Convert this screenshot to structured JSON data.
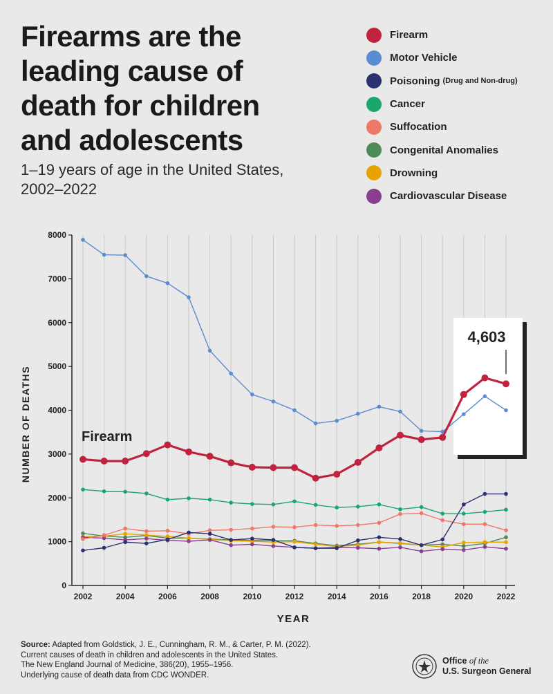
{
  "title_lines": [
    "Firearms are the",
    "leading cause of",
    "death for children",
    "and adolescents"
  ],
  "subtitle_lines": [
    "1–19 years of age in the United States,",
    "2002–2022"
  ],
  "legend": [
    {
      "label": "Firearm",
      "note": "",
      "color": "#c0233f"
    },
    {
      "label": "Motor Vehicle",
      "note": "",
      "color": "#5b8bd0"
    },
    {
      "label": "Poisoning",
      "note": "(Drug and Non-drug)",
      "color": "#2b3070"
    },
    {
      "label": "Cancer",
      "note": "",
      "color": "#1aa76c"
    },
    {
      "label": "Suffocation",
      "note": "",
      "color": "#ee7868"
    },
    {
      "label": "Congenital Anomalies",
      "note": "",
      "color": "#4f8a5a"
    },
    {
      "label": "Drowning",
      "note": "",
      "color": "#e8a300"
    },
    {
      "label": "Cardiovascular Disease",
      "note": "",
      "color": "#8a3f8e"
    }
  ],
  "chart_data": {
    "type": "line",
    "xlabel": "YEAR",
    "ylabel": "NUMBER OF DEATHS",
    "ylim": [
      0,
      8000
    ],
    "yticks": [
      0,
      1000,
      2000,
      3000,
      4000,
      5000,
      6000,
      7000,
      8000
    ],
    "x": [
      2002,
      2003,
      2004,
      2005,
      2006,
      2007,
      2008,
      2009,
      2010,
      2011,
      2012,
      2013,
      2014,
      2015,
      2016,
      2017,
      2018,
      2019,
      2020,
      2021,
      2022
    ],
    "xtick_labels": [
      2002,
      2004,
      2006,
      2008,
      2010,
      2012,
      2014,
      2016,
      2018,
      2020,
      2022
    ],
    "inline_label": "Firearm",
    "callout": "4,603",
    "series": [
      {
        "name": "Congenital Anomalies",
        "color": "#4f8a5a",
        "values": [
          1190,
          1130,
          1100,
          1140,
          1080,
          1080,
          1060,
          1040,
          1030,
          1020,
          1020,
          960,
          910,
          940,
          990,
          960,
          920,
          940,
          900,
          960,
          1100
        ]
      },
      {
        "name": "Drowning",
        "color": "#e8a300",
        "values": [
          1110,
          1130,
          1180,
          1150,
          1120,
          1080,
          1050,
          1020,
          1010,
          990,
          1000,
          940,
          890,
          920,
          990,
          970,
          920,
          880,
          980,
          990,
          990
        ]
      },
      {
        "name": "Cardiovascular Disease",
        "color": "#8a3f8e",
        "values": [
          1100,
          1080,
          1040,
          1070,
          1030,
          1010,
          1040,
          920,
          940,
          900,
          870,
          850,
          870,
          860,
          840,
          870,
          780,
          830,
          810,
          880,
          840
        ]
      },
      {
        "name": "Suffocation",
        "color": "#ee7868",
        "values": [
          1060,
          1150,
          1300,
          1240,
          1250,
          1180,
          1260,
          1270,
          1300,
          1340,
          1330,
          1380,
          1360,
          1380,
          1430,
          1630,
          1650,
          1490,
          1400,
          1400,
          1260
        ]
      },
      {
        "name": "Poisoning",
        "color": "#2b3070",
        "values": [
          800,
          860,
          990,
          960,
          1050,
          1210,
          1180,
          1040,
          1070,
          1040,
          870,
          850,
          850,
          1030,
          1100,
          1060,
          920,
          1050,
          1850,
          2090,
          2090
        ]
      },
      {
        "name": "Cancer",
        "color": "#1aa76c",
        "values": [
          2190,
          2150,
          2140,
          2100,
          1960,
          1990,
          1960,
          1890,
          1860,
          1850,
          1920,
          1840,
          1780,
          1800,
          1850,
          1740,
          1790,
          1640,
          1640,
          1680,
          1730
        ]
      },
      {
        "name": "Motor Vehicle",
        "color": "#5b8bd0",
        "values": [
          7890,
          7550,
          7540,
          7060,
          6900,
          6580,
          5360,
          4840,
          4360,
          4200,
          4000,
          3700,
          3760,
          3920,
          4080,
          3970,
          3530,
          3510,
          3910,
          4320,
          4000
        ]
      },
      {
        "name": "Firearm",
        "color": "#c0233f",
        "values": [
          2880,
          2840,
          2840,
          3010,
          3210,
          3050,
          2950,
          2800,
          2700,
          2690,
          2690,
          2450,
          2540,
          2810,
          3140,
          3430,
          3330,
          3380,
          4360,
          4740,
          4603
        ]
      }
    ]
  },
  "source": {
    "label": "Source:",
    "lines": [
      "Adapted from Goldstick, J. E., Cunningham, R. M., & Carter, P. M. (2022).",
      "Current causes of death in children and adolescents in the United States.",
      "The New England Journal of Medicine, 386(20), 1955–1956.",
      "Underlying cause of death data from CDC WONDER."
    ]
  },
  "org": {
    "line1_a": "Office",
    "line1_b": "of the",
    "line2": "U.S. Surgeon General"
  }
}
